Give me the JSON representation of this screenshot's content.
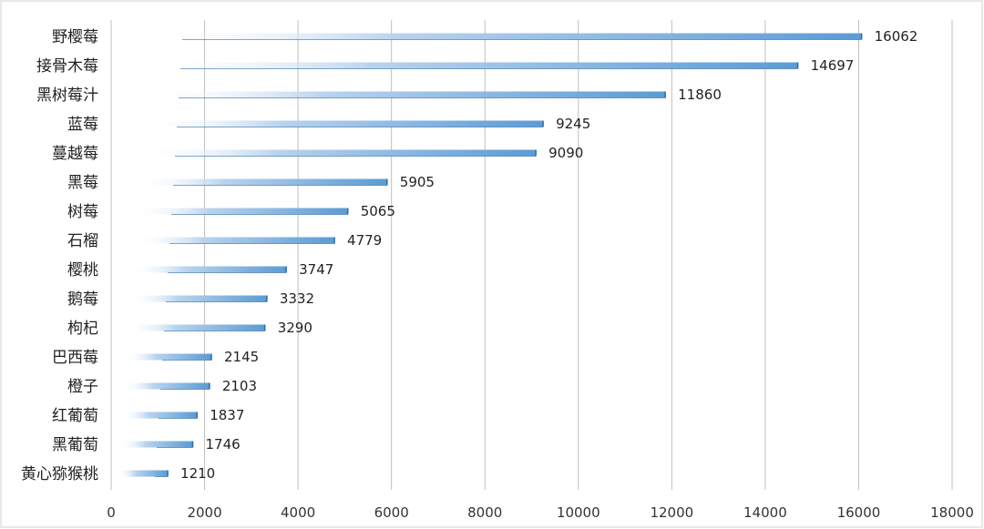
{
  "chart_data": {
    "type": "bar",
    "orientation": "horizontal",
    "categories": [
      "野樱莓",
      "接骨木莓",
      "黑树莓汁",
      "蓝莓",
      "蔓越莓",
      "黑莓",
      "树莓",
      "石榴",
      "樱桃",
      "鹅莓",
      "枸杞",
      "巴西莓",
      "橙子",
      "红葡萄",
      "黑葡萄",
      "黄心猕猴桃"
    ],
    "values": [
      16062,
      14697,
      11860,
      9245,
      9090,
      5905,
      5065,
      4779,
      3747,
      3332,
      3290,
      2145,
      2103,
      1837,
      1746,
      1210
    ],
    "value_labels": [
      "16062",
      "14697",
      "11860",
      "9245",
      "9090",
      "5905",
      "5065",
      "4779",
      "3747",
      "3332",
      "3290",
      "2145",
      "2103",
      "1837",
      "1746",
      "1210"
    ],
    "xlim": [
      0,
      18000
    ],
    "ticks": [
      "0",
      "2000",
      "4000",
      "6000",
      "8000",
      "10000",
      "12000",
      "14000",
      "16000",
      "18000"
    ],
    "tick_values": [
      0,
      2000,
      4000,
      6000,
      8000,
      10000,
      12000,
      14000,
      16000,
      18000
    ],
    "grid": true,
    "legend": "none",
    "bar_color": "#5b9bd5",
    "bar_edge_color": "#2e6da4"
  }
}
